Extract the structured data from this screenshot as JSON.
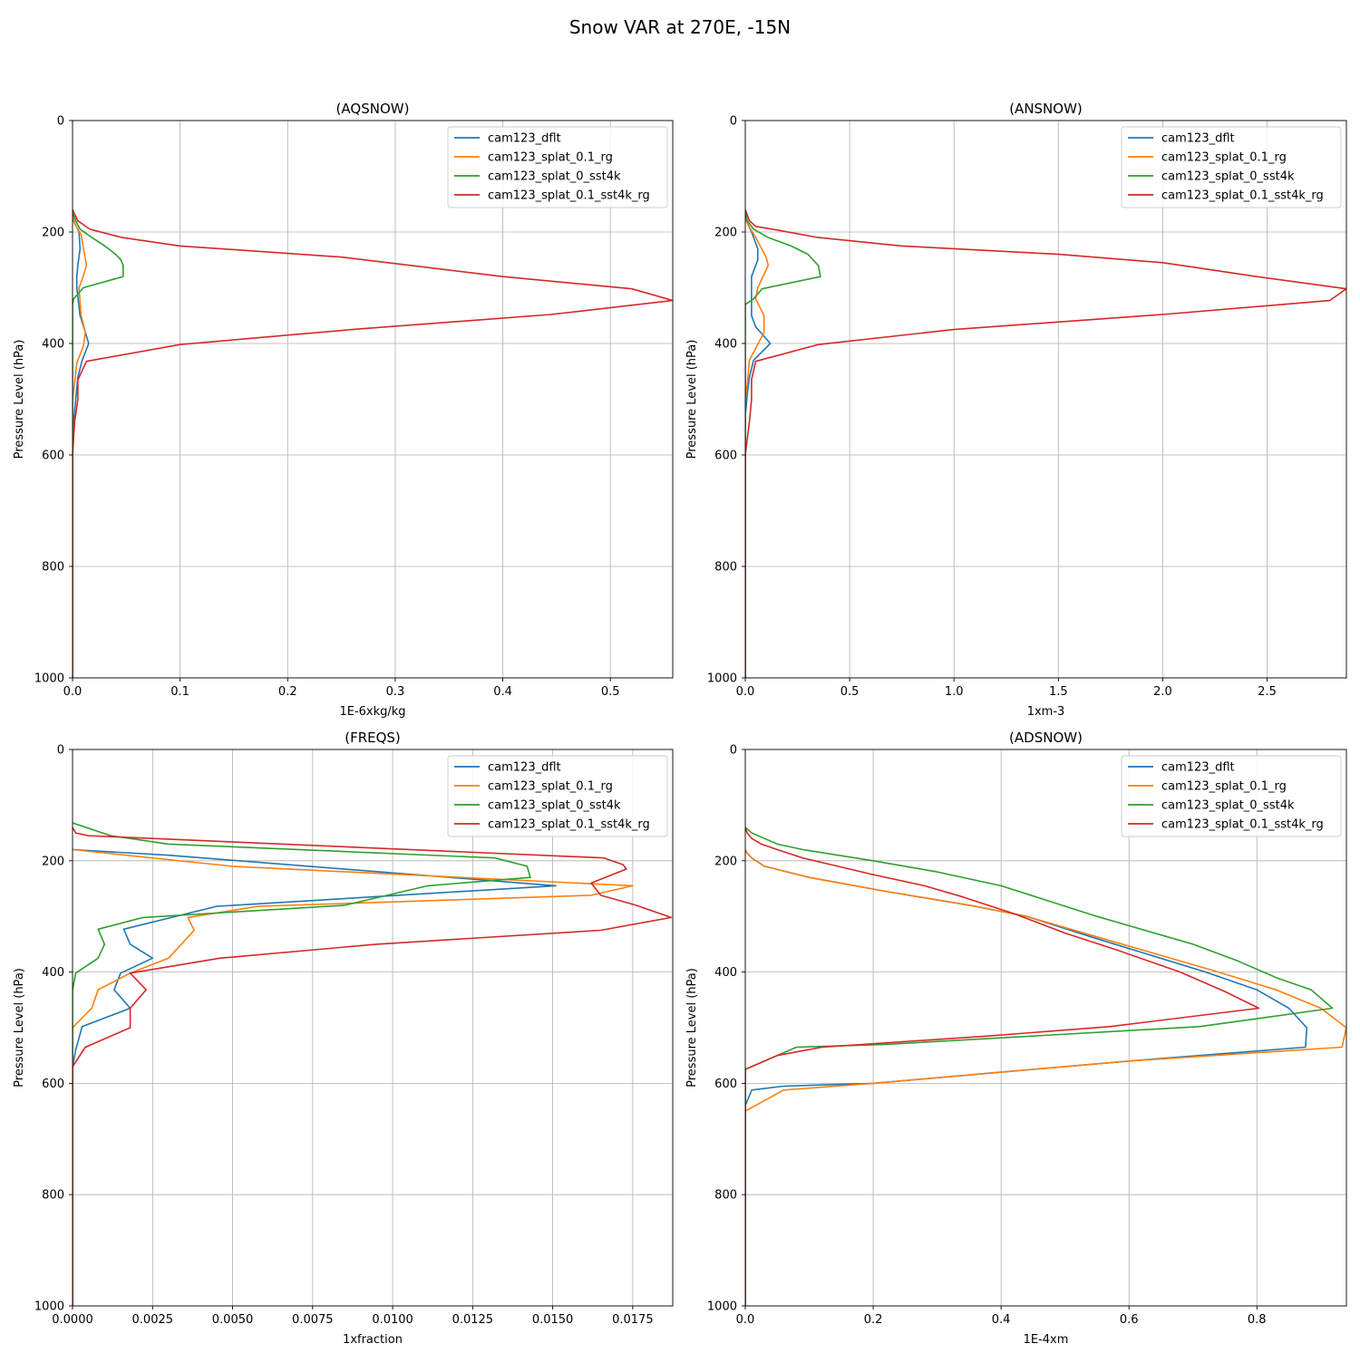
{
  "figure": {
    "title": "Snow VAR at 270E, -15N"
  },
  "chart_data": [
    {
      "type": "line",
      "title": "(AQSNOW)",
      "xlabel": "1E-6xkg/kg",
      "ylabel": "Pressure Level (hPa)",
      "xlim": [
        0,
        0.558
      ],
      "ylim": [
        1000,
        0
      ],
      "xticks": [
        0.0,
        0.1,
        0.2,
        0.3,
        0.4,
        0.5
      ],
      "xtick_labels": [
        "0.0",
        "0.1",
        "0.2",
        "0.3",
        "0.4",
        "0.5"
      ],
      "yticks": [
        0,
        200,
        400,
        600,
        800,
        1000
      ],
      "ytick_labels": [
        "0",
        "200",
        "400",
        "600",
        "800",
        "1000"
      ],
      "grid": true,
      "legend_position": "upper right",
      "series": [
        {
          "name": "cam123_dflt",
          "color": "#1f77b4",
          "x": [
            0,
            0.001,
            0.006,
            0.007,
            0.005,
            0.004,
            0.004,
            0.007,
            0.012,
            0.015,
            0.009,
            0.005,
            0.004,
            0.002,
            0,
            0,
            0,
            0
          ],
          "y": [
            170,
            180,
            200,
            230,
            260,
            280,
            300,
            350,
            380,
            400,
            430,
            460,
            480,
            520,
            560,
            700,
            850,
            1000
          ]
        },
        {
          "name": "cam123_splat_0.1_rg",
          "color": "#ff7f0e",
          "x": [
            0,
            0.002,
            0.008,
            0.013,
            0.009,
            0.006,
            0.008,
            0.012,
            0.01,
            0.004,
            0.002,
            0,
            0,
            0,
            0
          ],
          "y": [
            170,
            185,
            205,
            260,
            285,
            300,
            350,
            380,
            405,
            435,
            470,
            500,
            600,
            800,
            1000
          ]
        },
        {
          "name": "cam123_splat_0_sst4k",
          "color": "#2ca02c",
          "x": [
            0,
            0.003,
            0.007,
            0.018,
            0.03,
            0.04,
            0.045,
            0.047,
            0.047,
            0.01,
            0.001,
            0,
            0,
            0
          ],
          "y": [
            165,
            180,
            195,
            210,
            225,
            240,
            250,
            260,
            280,
            300,
            320,
            330,
            600,
            1000
          ]
        },
        {
          "name": "cam123_splat_0.1_sst4k_rg",
          "color": "#d62728",
          "x": [
            0,
            0.005,
            0.016,
            0.046,
            0.1,
            0.25,
            0.4,
            0.52,
            0.558,
            0.445,
            0.26,
            0.1,
            0.013,
            0.005,
            0.005,
            0.002,
            0,
            0,
            0
          ],
          "y": [
            160,
            180,
            195,
            210,
            225,
            245,
            280,
            302,
            323,
            348,
            375,
            402,
            432,
            465,
            500,
            540,
            600,
            800,
            1000
          ]
        }
      ]
    },
    {
      "type": "line",
      "title": "(ANSNOW)",
      "xlabel": "1xm-3",
      "ylabel": "Pressure Level (hPa)",
      "xlim": [
        0,
        2.88
      ],
      "ylim": [
        1000,
        0
      ],
      "xticks": [
        0.0,
        0.5,
        1.0,
        1.5,
        2.0,
        2.5
      ],
      "xtick_labels": [
        "0.0",
        "0.5",
        "1.0",
        "1.5",
        "2.0",
        "2.5"
      ],
      "yticks": [
        0,
        200,
        400,
        600,
        800,
        1000
      ],
      "ytick_labels": [
        "0",
        "200",
        "400",
        "600",
        "800",
        "1000"
      ],
      "grid": true,
      "legend_position": "upper right",
      "series": [
        {
          "name": "cam123_dflt",
          "color": "#1f77b4",
          "x": [
            0,
            0.005,
            0.03,
            0.06,
            0.06,
            0.03,
            0.03,
            0.03,
            0.05,
            0.12,
            0.04,
            0.02,
            0.01,
            0,
            0,
            0,
            0
          ],
          "y": [
            165,
            180,
            200,
            230,
            250,
            280,
            300,
            350,
            370,
            400,
            430,
            460,
            490,
            530,
            600,
            800,
            1000
          ]
        },
        {
          "name": "cam123_splat_0.1_rg",
          "color": "#ff7f0e",
          "x": [
            0,
            0.01,
            0.05,
            0.1,
            0.11,
            0.06,
            0.05,
            0.09,
            0.09,
            0.02,
            0.01,
            0,
            0,
            0,
            0
          ],
          "y": [
            165,
            185,
            210,
            245,
            260,
            300,
            320,
            350,
            380,
            430,
            470,
            500,
            600,
            800,
            1000
          ]
        },
        {
          "name": "cam123_splat_0_sst4k",
          "color": "#2ca02c",
          "x": [
            0,
            0.01,
            0.04,
            0.11,
            0.22,
            0.3,
            0.35,
            0.36,
            0.08,
            0.04,
            0,
            0,
            0,
            0
          ],
          "y": [
            165,
            180,
            195,
            210,
            225,
            240,
            260,
            280,
            302,
            320,
            330,
            600,
            800,
            1000
          ]
        },
        {
          "name": "cam123_splat_0.1_sst4k_rg",
          "color": "#d62728",
          "x": [
            0,
            0.02,
            0.05,
            0.13,
            0.35,
            0.75,
            1.5,
            2.0,
            2.45,
            2.88,
            2.8,
            2.0,
            1.0,
            0.35,
            0.05,
            0.03,
            0.03,
            0.02,
            0,
            0,
            0
          ],
          "y": [
            160,
            180,
            190,
            195,
            210,
            225,
            240,
            255,
            280,
            302,
            323,
            348,
            375,
            402,
            432,
            465,
            500,
            540,
            600,
            800,
            1000
          ]
        }
      ]
    },
    {
      "type": "line",
      "title": "(FREQS)",
      "xlabel": "1xfraction",
      "ylabel": "Pressure Level (hPa)",
      "xlim": [
        0,
        0.01875
      ],
      "ylim": [
        1000,
        0
      ],
      "xticks": [
        0.0,
        0.0025,
        0.005,
        0.0075,
        0.01,
        0.0125,
        0.015,
        0.0175
      ],
      "xtick_labels": [
        "0.0000",
        "0.0025",
        "0.0050",
        "0.0075",
        "0.0100",
        "0.0125",
        "0.0150",
        "0.0175"
      ],
      "yticks": [
        0,
        200,
        400,
        600,
        800,
        1000
      ],
      "ytick_labels": [
        "0",
        "200",
        "400",
        "600",
        "800",
        "1000"
      ],
      "grid": true,
      "legend_position": "upper right",
      "series": [
        {
          "name": "cam123_dflt",
          "color": "#1f77b4",
          "x": [
            0,
            0.003,
            0.0151,
            0.0045,
            0.0016,
            0.0018,
            0.0025,
            0.0015,
            0.0013,
            0.0018,
            0.0003,
            0.0001,
            0,
            0,
            0
          ],
          "y": [
            180,
            190,
            245,
            282,
            323,
            350,
            375,
            402,
            432,
            465,
            498,
            540,
            570,
            800,
            1000
          ]
        },
        {
          "name": "cam123_splat_0.1_rg",
          "color": "#ff7f0e",
          "x": [
            0,
            0.005,
            0.0175,
            0.0162,
            0.0058,
            0.0036,
            0.0038,
            0.003,
            0.0018,
            0.0008,
            0.0006,
            0,
            0,
            0
          ],
          "y": [
            180,
            210,
            245,
            262,
            282,
            302,
            325,
            375,
            402,
            432,
            465,
            500,
            540,
            1000
          ]
        },
        {
          "name": "cam123_splat_0_sst4k",
          "color": "#2ca02c",
          "x": [
            0,
            0.0012,
            0.003,
            0.0132,
            0.0142,
            0.0143,
            0.0111,
            0.0085,
            0.0022,
            0.0008,
            0.001,
            0.0008,
            0.0001,
            0,
            0,
            0,
            0
          ],
          "y": [
            132,
            155,
            170,
            195,
            210,
            230,
            245,
            280,
            302,
            323,
            350,
            375,
            402,
            432,
            465,
            600,
            1000
          ]
        },
        {
          "name": "cam123_splat_0.1_sst4k_rg",
          "color": "#d62728",
          "x": [
            0,
            0.0001,
            0.0005,
            0.0166,
            0.0172,
            0.0173,
            0.0162,
            0.0165,
            0.0176,
            0.0187,
            0.0165,
            0.0095,
            0.0046,
            0.0018,
            0.0023,
            0.0018,
            0.0018,
            0.0004,
            0,
            0,
            0
          ],
          "y": [
            140,
            150,
            155,
            195,
            207,
            215,
            240,
            262,
            280,
            302,
            325,
            350,
            375,
            402,
            432,
            465,
            500,
            535,
            570,
            800,
            1000
          ]
        }
      ]
    },
    {
      "type": "line",
      "title": "(ADSNOW)",
      "xlabel": "1E-4xm",
      "ylabel": "Pressure Level (hPa)",
      "xlim": [
        0,
        0.94
      ],
      "ylim": [
        1000,
        0
      ],
      "xticks": [
        0.0,
        0.2,
        0.4,
        0.6,
        0.8
      ],
      "xtick_labels": [
        "0.0",
        "0.2",
        "0.4",
        "0.6",
        "0.8"
      ],
      "yticks": [
        0,
        200,
        400,
        600,
        800,
        1000
      ],
      "ytick_labels": [
        "0",
        "200",
        "400",
        "600",
        "800",
        "1000"
      ],
      "grid": true,
      "legend_position": "upper right",
      "series": [
        {
          "name": "cam123_dflt",
          "color": "#1f77b4",
          "x": [
            0,
            0.002,
            0.01,
            0.03,
            0.1,
            0.22,
            0.36,
            0.44,
            0.55,
            0.72,
            0.8,
            0.85,
            0.878,
            0.876,
            0.6,
            0.4,
            0.2,
            0.06,
            0.01,
            0,
            0,
            0
          ],
          "y": [
            180,
            185,
            195,
            210,
            230,
            255,
            282,
            300,
            340,
            400,
            432,
            465,
            500,
            535,
            560,
            580,
            600,
            605,
            612,
            640,
            800,
            1000
          ]
        },
        {
          "name": "cam123_splat_0.1_rg",
          "color": "#ff7f0e",
          "x": [
            0,
            0.002,
            0.01,
            0.03,
            0.1,
            0.22,
            0.36,
            0.44,
            0.56,
            0.74,
            0.83,
            0.9,
            0.94,
            0.933,
            0.6,
            0.4,
            0.2,
            0.06,
            0,
            0,
            0
          ],
          "y": [
            180,
            185,
            195,
            210,
            230,
            255,
            282,
            300,
            340,
            400,
            432,
            465,
            500,
            535,
            560,
            580,
            600,
            612,
            650,
            800,
            1000
          ]
        },
        {
          "name": "cam123_splat_0_sst4k",
          "color": "#2ca02c",
          "x": [
            0,
            0.01,
            0.03,
            0.05,
            0.09,
            0.2,
            0.3,
            0.4,
            0.55,
            0.7,
            0.77,
            0.83,
            0.885,
            0.918,
            0.71,
            0.22,
            0.08,
            0,
            0,
            0
          ],
          "y": [
            140,
            150,
            160,
            170,
            180,
            200,
            220,
            245,
            300,
            350,
            380,
            410,
            432,
            465,
            498,
            530,
            535,
            575,
            800,
            1000
          ]
        },
        {
          "name": "cam123_splat_0.1_sst4k_rg",
          "color": "#d62728",
          "x": [
            0,
            0.003,
            0.01,
            0.025,
            0.05,
            0.09,
            0.2,
            0.28,
            0.34,
            0.42,
            0.5,
            0.58,
            0.68,
            0.75,
            0.803,
            0.57,
            0.38,
            0.12,
            0.05,
            0,
            0,
            0
          ],
          "y": [
            140,
            150,
            160,
            170,
            180,
            195,
            225,
            245,
            265,
            295,
            330,
            360,
            400,
            435,
            465,
            498,
            515,
            535,
            550,
            575,
            800,
            1000
          ]
        }
      ]
    }
  ]
}
